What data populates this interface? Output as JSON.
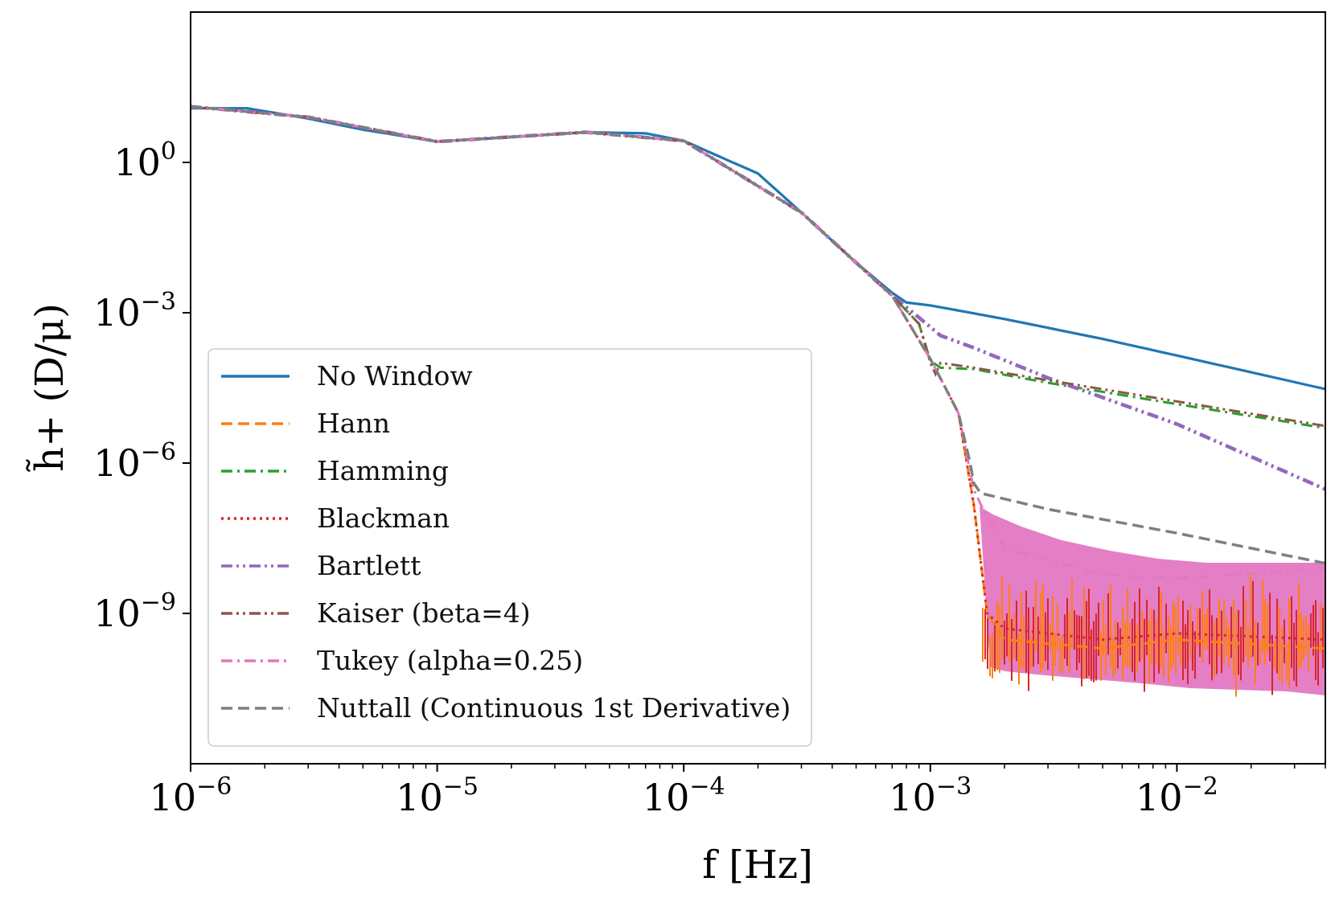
{
  "chart_data": {
    "type": "line",
    "title": "",
    "xlabel": "f [Hz]",
    "ylabel": "h̃+ (D/μ)",
    "xscale": "log",
    "yscale": "log",
    "xlim": [
      1e-06,
      0.04
    ],
    "ylim": [
      1e-12,
      1000.0
    ],
    "x_ticks": [
      {
        "base": "10",
        "exp": "−6",
        "value": 1e-06
      },
      {
        "base": "10",
        "exp": "−5",
        "value": 1e-05
      },
      {
        "base": "10",
        "exp": "−4",
        "value": 0.0001
      },
      {
        "base": "10",
        "exp": "−3",
        "value": 0.001
      },
      {
        "base": "10",
        "exp": "−2",
        "value": 0.01
      }
    ],
    "y_ticks": [
      {
        "base": "10",
        "exp": "0",
        "value": 1
      },
      {
        "base": "10",
        "exp": "−3",
        "value": 0.001
      },
      {
        "base": "10",
        "exp": "−6",
        "value": 1e-06
      },
      {
        "base": "10",
        "exp": "−9",
        "value": 1e-09
      }
    ],
    "legend_position": "lower-left",
    "grid": false,
    "series": [
      {
        "name": "No Window",
        "color": "#1f77b4",
        "dash": "solid",
        "points": [
          [
            1e-06,
            12
          ],
          [
            1.7e-06,
            12
          ],
          [
            3e-06,
            7.5
          ],
          [
            5e-06,
            4.5
          ],
          [
            1e-05,
            2.6
          ],
          [
            2e-05,
            3.2
          ],
          [
            4e-05,
            4.0
          ],
          [
            7e-05,
            3.8
          ],
          [
            0.0001,
            2.7
          ],
          [
            0.0002,
            0.6
          ],
          [
            0.0003,
            0.1
          ],
          [
            0.0005,
            0.01
          ],
          [
            0.0007,
            0.0025
          ],
          [
            0.0008,
            0.0016
          ],
          [
            0.001,
            0.0014
          ],
          [
            0.002,
            0.00075
          ],
          [
            0.005,
            0.0003
          ],
          [
            0.01,
            0.00014
          ],
          [
            0.04,
            3e-05
          ]
        ]
      },
      {
        "name": "Hann",
        "color": "#ff7f0e",
        "dash": "dashed",
        "points": [
          [
            1e-06,
            13
          ],
          [
            3e-06,
            8
          ],
          [
            1e-05,
            2.6
          ],
          [
            4e-05,
            4.0
          ],
          [
            0.0001,
            2.7
          ],
          [
            0.0003,
            0.1
          ],
          [
            0.0005,
            0.01
          ],
          [
            0.0007,
            0.0022
          ],
          [
            0.001,
            0.00012
          ],
          [
            0.0013,
            1e-05
          ],
          [
            0.0015,
            1.5e-07
          ],
          [
            0.0017,
            1e-09
          ],
          [
            0.002,
            3e-10
          ],
          [
            0.005,
            2e-10
          ],
          [
            0.01,
            3e-10
          ],
          [
            0.04,
            2e-10
          ]
        ]
      },
      {
        "name": "Hamming",
        "color": "#2ca02c",
        "dash": "dashdot",
        "points": [
          [
            1e-06,
            13
          ],
          [
            3e-06,
            8
          ],
          [
            1e-05,
            2.6
          ],
          [
            4e-05,
            4.0
          ],
          [
            0.0001,
            2.7
          ],
          [
            0.0003,
            0.1
          ],
          [
            0.0005,
            0.01
          ],
          [
            0.0007,
            0.0022
          ],
          [
            0.0009,
            0.0006
          ],
          [
            0.001,
            0.00011
          ],
          [
            0.0011,
            8e-05
          ],
          [
            0.0015,
            7.5e-05
          ],
          [
            0.003,
            4e-05
          ],
          [
            0.01,
            1.5e-05
          ],
          [
            0.04,
            5e-06
          ]
        ]
      },
      {
        "name": "Blackman",
        "color": "#d62728",
        "dash": "dotted",
        "points": [
          [
            1e-06,
            13
          ],
          [
            3e-06,
            8
          ],
          [
            1e-05,
            2.6
          ],
          [
            4e-05,
            4.0
          ],
          [
            0.0001,
            2.7
          ],
          [
            0.0003,
            0.1
          ],
          [
            0.0005,
            0.01
          ],
          [
            0.0007,
            0.0022
          ],
          [
            0.001,
            0.00012
          ],
          [
            0.0013,
            1e-05
          ],
          [
            0.0015,
            1.5e-07
          ],
          [
            0.0017,
            1e-09
          ],
          [
            0.002,
            5e-10
          ],
          [
            0.005,
            3e-10
          ],
          [
            0.01,
            4e-10
          ],
          [
            0.04,
            3e-10
          ]
        ]
      },
      {
        "name": "Bartlett",
        "color": "#9467bd",
        "dash": "dashdotdot",
        "points": [
          [
            1e-06,
            13
          ],
          [
            3e-06,
            8
          ],
          [
            1e-05,
            2.6
          ],
          [
            4e-05,
            4.0
          ],
          [
            0.0001,
            2.7
          ],
          [
            0.0003,
            0.1
          ],
          [
            0.0005,
            0.01
          ],
          [
            0.0007,
            0.0022
          ],
          [
            0.0009,
            0.0008
          ],
          [
            0.0011,
            0.00035
          ],
          [
            0.0015,
            0.0002
          ],
          [
            0.003,
            5e-05
          ],
          [
            0.01,
            6e-06
          ],
          [
            0.04,
            3e-07
          ]
        ]
      },
      {
        "name": "Kaiser (beta=4)",
        "color": "#8c564b",
        "dash": "dashdotdot",
        "points": [
          [
            1e-06,
            13
          ],
          [
            3e-06,
            8
          ],
          [
            1e-05,
            2.6
          ],
          [
            4e-05,
            4.0
          ],
          [
            0.0001,
            2.7
          ],
          [
            0.0003,
            0.1
          ],
          [
            0.0005,
            0.01
          ],
          [
            0.0007,
            0.0022
          ],
          [
            0.0009,
            0.0006
          ],
          [
            0.001,
            0.0001
          ],
          [
            0.00105,
            6e-05
          ],
          [
            0.0011,
            0.0001
          ],
          [
            0.0015,
            8e-05
          ],
          [
            0.003,
            4.5e-05
          ],
          [
            0.01,
            1.7e-05
          ],
          [
            0.04,
            5.5e-06
          ]
        ]
      },
      {
        "name": "Tukey (alpha=0.25)",
        "color": "#e377c2",
        "dash": "dashdot",
        "points": [
          [
            1e-06,
            13
          ],
          [
            3e-06,
            8
          ],
          [
            1e-05,
            2.6
          ],
          [
            4e-05,
            4.0
          ],
          [
            0.0001,
            2.7
          ],
          [
            0.0003,
            0.1
          ],
          [
            0.0005,
            0.01
          ],
          [
            0.0007,
            0.0022
          ],
          [
            0.001,
            0.00012
          ],
          [
            0.0013,
            1e-05
          ],
          [
            0.0015,
            3e-07
          ],
          [
            0.0016,
            1.5e-07
          ],
          [
            0.002,
            2e-08
          ],
          [
            0.005,
            6e-09
          ],
          [
            0.01,
            5e-09
          ],
          [
            0.04,
            8e-09
          ]
        ]
      },
      {
        "name": "Nuttall (Continuous 1st Derivative)",
        "color": "#7f7f7f",
        "dash": "dashed",
        "points": [
          [
            1e-06,
            13
          ],
          [
            3e-06,
            8
          ],
          [
            1e-05,
            2.6
          ],
          [
            4e-05,
            4.0
          ],
          [
            0.0001,
            2.7
          ],
          [
            0.0003,
            0.1
          ],
          [
            0.0005,
            0.01
          ],
          [
            0.0007,
            0.0022
          ],
          [
            0.001,
            0.00012
          ],
          [
            0.0013,
            1e-05
          ],
          [
            0.00145,
            1e-06
          ],
          [
            0.0015,
            4e-07
          ],
          [
            0.0016,
            2.5e-07
          ],
          [
            0.003,
            1.2e-07
          ],
          [
            0.01,
            4e-08
          ],
          [
            0.04,
            1e-08
          ]
        ]
      }
    ]
  }
}
